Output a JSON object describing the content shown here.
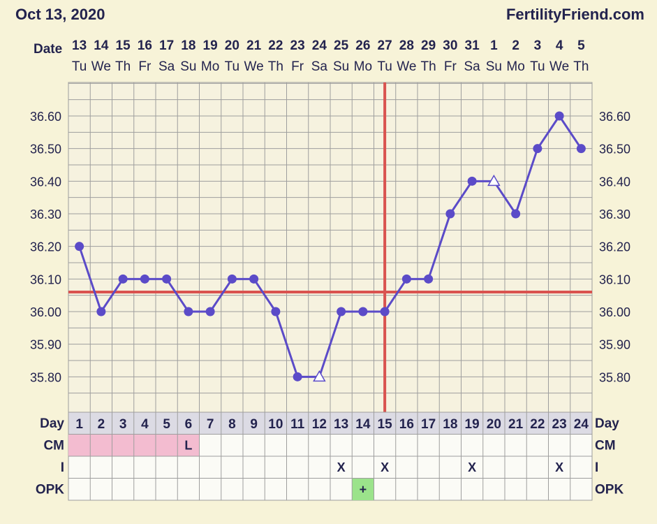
{
  "header": {
    "date": "Oct 13, 2020",
    "site": "FertilityFriend.com"
  },
  "date_row_label": "Date",
  "dates": [
    "13",
    "14",
    "15",
    "16",
    "17",
    "18",
    "19",
    "20",
    "21",
    "22",
    "23",
    "24",
    "25",
    "26",
    "27",
    "28",
    "29",
    "30",
    "31",
    "1",
    "2",
    "3",
    "4",
    "5"
  ],
  "weekdays": [
    "Tu",
    "We",
    "Th",
    "Fr",
    "Sa",
    "Su",
    "Mo",
    "Tu",
    "We",
    "Th",
    "Fr",
    "Sa",
    "Su",
    "Mo",
    "Tu",
    "We",
    "Th",
    "Fr",
    "Sa",
    "Su",
    "Mo",
    "Tu",
    "We",
    "Th"
  ],
  "colors": {
    "line": "#5b4bc8",
    "coverline": "#d9534f",
    "grid": "#9e9e9e",
    "menses": "#f3bcd0",
    "opk_positive": "#9be38b",
    "text": "#23234e"
  },
  "chart_data": {
    "type": "line",
    "x": [
      1,
      2,
      3,
      4,
      5,
      6,
      7,
      8,
      9,
      10,
      11,
      12,
      13,
      14,
      15,
      16,
      17,
      18,
      19,
      20,
      21,
      22,
      23,
      24
    ],
    "series": [
      {
        "values": [
          36.2,
          36.0,
          36.1,
          36.1,
          36.1,
          36.0,
          36.0,
          36.1,
          36.1,
          36.0,
          35.8,
          35.8,
          36.0,
          36.0,
          36.0,
          36.1,
          36.1,
          36.3,
          36.4,
          36.4,
          36.3,
          36.5,
          36.6,
          36.5
        ],
        "markers": [
          "dot",
          "dot",
          "dot",
          "dot",
          "dot",
          "dot",
          "dot",
          "dot",
          "dot",
          "dot",
          "dot",
          "open-triangle",
          "dot",
          "dot",
          "dot",
          "dot",
          "dot",
          "dot",
          "dot",
          "open-triangle",
          "dot",
          "dot",
          "dot",
          "dot"
        ]
      }
    ],
    "y_ticks": [
      "36.60",
      "36.50",
      "36.40",
      "36.30",
      "36.20",
      "36.10",
      "36.00",
      "35.90",
      "35.80"
    ],
    "ylim": [
      35.72,
      36.7
    ],
    "coverline": 36.06,
    "ovulation_day": 15,
    "grid": true
  },
  "bottom_rows": {
    "day_label": "Day",
    "cm_label": "CM",
    "i_label": "I",
    "opk_label": "OPK",
    "cm": [
      "",
      "",
      "",
      "",
      "",
      "L",
      "",
      "",
      "",
      "",
      "",
      "",
      "",
      "",
      "",
      "",
      "",
      "",
      "",
      "",
      "",
      "",
      "",
      ""
    ],
    "menses_days": [
      1,
      2,
      3,
      4,
      5,
      6
    ],
    "i": [
      "",
      "",
      "",
      "",
      "",
      "",
      "",
      "",
      "",
      "",
      "",
      "",
      "X",
      "",
      "X",
      "",
      "",
      "",
      "X",
      "",
      "",
      "",
      "X",
      ""
    ],
    "opk": [
      "",
      "",
      "",
      "",
      "",
      "",
      "",
      "",
      "",
      "",
      "",
      "",
      "",
      "+",
      "",
      "",
      "",
      "",
      "",
      "",
      "",
      "",
      "",
      ""
    ]
  }
}
